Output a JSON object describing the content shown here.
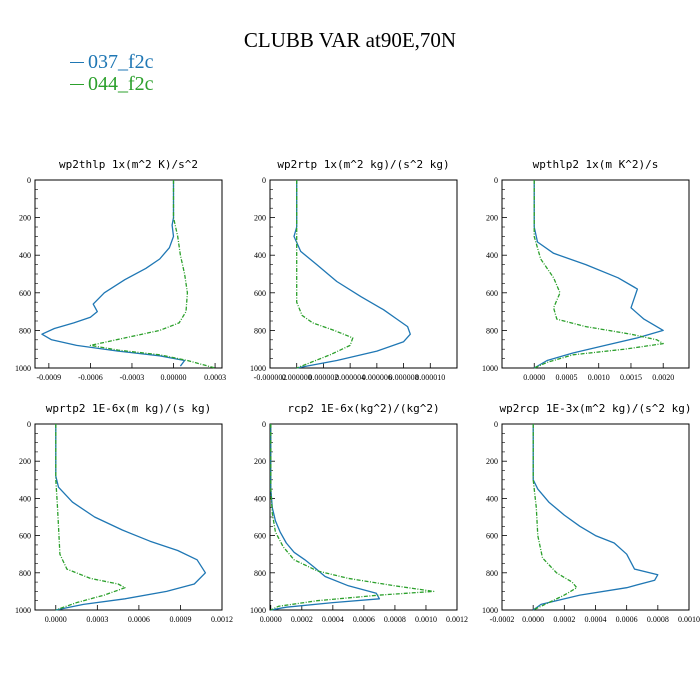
{
  "figure_title": "CLUBB VAR at90E,70N",
  "legend": [
    {
      "label": "037_f2c",
      "color": "#1f77b4"
    },
    {
      "label": "044_f2c",
      "color": "#2ca02c"
    }
  ],
  "chart_data": [
    {
      "type": "line",
      "title": "wp2thlp  1x(m^2 K)/s^2",
      "xlim": [
        -0.001,
        0.00035
      ],
      "ylim": [
        0,
        1000
      ],
      "y_inverted": true,
      "xticks": [
        -0.0009,
        -0.0006,
        -0.0003,
        0.0,
        0.0003
      ],
      "xtick_labels": [
        "-0.0009",
        "-0.0006",
        "-0.0003",
        "0.00000",
        "0.0003"
      ],
      "yticks": [
        0,
        200,
        400,
        600,
        800,
        1000
      ],
      "series": [
        {
          "name": "037_f2c",
          "color": "#1f77b4",
          "dashed": false,
          "x": [
            0.0,
            0.0,
            -1e-05,
            0.0,
            -3e-05,
            -0.0001,
            -0.0002,
            -0.00035,
            -0.0005,
            -0.00058,
            -0.00055,
            -0.0006,
            -0.00072,
            -0.00086,
            -0.00095,
            -0.00088,
            -0.0007,
            -0.0004,
            -0.0001,
            8e-05,
            5e-05
          ],
          "y": [
            0,
            200,
            240,
            300,
            360,
            420,
            470,
            530,
            600,
            660,
            700,
            730,
            760,
            790,
            820,
            850,
            880,
            910,
            935,
            960,
            990
          ]
        },
        {
          "name": "044_f2c",
          "color": "#2ca02c",
          "dashed": true,
          "x": [
            0.0,
            0.0,
            3e-05,
            5e-05,
            8e-05,
            0.0001,
            9e-05,
            4e-05,
            -0.0001,
            -0.00035,
            -0.0006,
            -0.0004,
            -0.0001,
            0.0001,
            0.0003
          ],
          "y": [
            0,
            200,
            300,
            400,
            500,
            600,
            700,
            760,
            800,
            840,
            880,
            905,
            930,
            960,
            1000
          ]
        }
      ]
    },
    {
      "type": "line",
      "title": "wp2rtp  1x(m^2 kg)/(s^2 kg)",
      "xlim": [
        -2e-06,
        1.2e-05
      ],
      "ylim": [
        0,
        1000
      ],
      "y_inverted": true,
      "xticks": [
        -2e-06,
        0.0,
        2e-06,
        4e-06,
        6e-06,
        8e-06,
        1e-05
      ],
      "xtick_labels": [
        "-0.000002",
        "0.000000",
        "0.000002",
        "0.000004",
        "0.000006",
        "0.000008",
        "0.000010"
      ],
      "yticks": [
        0,
        200,
        400,
        600,
        800,
        1000
      ],
      "series": [
        {
          "name": "037_f2c",
          "color": "#1f77b4",
          "dashed": false,
          "x": [
            0.0,
            0.0,
            -2e-07,
            3e-07,
            1.5e-06,
            3e-06,
            4.8e-06,
            6.5e-06,
            7.5e-06,
            8.3e-06,
            8.5e-06,
            8e-06,
            6e-06,
            3e-06,
            0.0
          ],
          "y": [
            0,
            250,
            300,
            380,
            450,
            540,
            620,
            690,
            740,
            780,
            820,
            860,
            910,
            960,
            1000
          ]
        },
        {
          "name": "044_f2c",
          "color": "#2ca02c",
          "dashed": true,
          "x": [
            0.0,
            0.0,
            0.0,
            0.0,
            4e-07,
            1.2e-06,
            2.8e-06,
            4.2e-06,
            4e-06,
            2.5e-06,
            0.0
          ],
          "y": [
            0,
            300,
            500,
            650,
            720,
            760,
            800,
            840,
            880,
            930,
            1000
          ]
        }
      ]
    },
    {
      "type": "line",
      "title": "wpthlp2  1x(m K^2)/s",
      "xlim": [
        -0.0005,
        0.0024
      ],
      "ylim": [
        0,
        1000
      ],
      "y_inverted": true,
      "xticks": [
        0.0,
        0.0005,
        0.001,
        0.0015,
        0.002
      ],
      "xtick_labels": [
        "0.0000",
        "0.0005",
        "0.0010",
        "0.0015",
        "0.0020"
      ],
      "yticks": [
        0,
        200,
        400,
        600,
        800,
        1000
      ],
      "series": [
        {
          "name": "037_f2c",
          "color": "#1f77b4",
          "dashed": false,
          "x": [
            0.0,
            0.0,
            5e-05,
            0.0003,
            0.0008,
            0.0013,
            0.0016,
            0.0015,
            0.0017,
            0.002,
            0.0016,
            0.0011,
            0.0006,
            0.0002,
            0.0
          ],
          "y": [
            0,
            250,
            330,
            390,
            450,
            520,
            580,
            680,
            740,
            800,
            840,
            880,
            920,
            960,
            1000
          ]
        },
        {
          "name": "044_f2c",
          "color": "#2ca02c",
          "dashed": true,
          "x": [
            0.0,
            0.0,
            0.0001,
            0.0003,
            0.0004,
            0.0003,
            0.00035,
            0.0008,
            0.0015,
            0.0019,
            0.002,
            0.0014,
            0.0006,
            0.0002,
            0.0
          ],
          "y": [
            0,
            300,
            420,
            520,
            600,
            680,
            740,
            780,
            820,
            850,
            870,
            900,
            930,
            970,
            1000
          ]
        }
      ]
    },
    {
      "type": "line",
      "title": "wprtp2  1E-6x(m kg)/(s kg)",
      "xlim": [
        -0.00015,
        0.0012
      ],
      "ylim": [
        0,
        1000
      ],
      "y_inverted": true,
      "xticks": [
        0.0,
        0.0003,
        0.0006,
        0.0009,
        0.0012
      ],
      "xtick_labels": [
        "0.0000",
        "0.0003",
        "0.0006",
        "0.0009",
        "0.0012"
      ],
      "yticks": [
        0,
        200,
        400,
        600,
        800,
        1000
      ],
      "series": [
        {
          "name": "037_f2c",
          "color": "#1f77b4",
          "dashed": false,
          "x": [
            0.0,
            0.0,
            2e-05,
            0.00012,
            0.00028,
            0.00048,
            0.00068,
            0.00088,
            0.00102,
            0.00108,
            0.001,
            0.0008,
            0.0005,
            0.0002,
            0.0
          ],
          "y": [
            0,
            280,
            340,
            420,
            500,
            570,
            630,
            680,
            730,
            800,
            860,
            900,
            940,
            970,
            1000
          ]
        },
        {
          "name": "044_f2c",
          "color": "#2ca02c",
          "dashed": true,
          "x": [
            0.0,
            0.0,
            1e-05,
            2e-05,
            3e-05,
            8e-05,
            0.00025,
            0.00045,
            0.0005,
            0.00035,
            0.00015,
            0.0
          ],
          "y": [
            0,
            300,
            420,
            550,
            700,
            780,
            830,
            860,
            880,
            920,
            960,
            1000
          ]
        }
      ]
    },
    {
      "type": "line",
      "title": "rcp2  1E-6x(kg^2)/(kg^2)",
      "xlim": [
        -5e-06,
        0.0012
      ],
      "ylim": [
        0,
        1000
      ],
      "y_inverted": true,
      "xticks": [
        0.0,
        0.0002,
        0.0004,
        0.0006,
        0.0008,
        0.001,
        0.0012
      ],
      "xtick_labels": [
        "0.0000",
        "0.0002",
        "0.0004",
        "0.0006",
        "0.0008",
        "0.0010",
        "0.0012"
      ],
      "yticks": [
        0,
        200,
        400,
        600,
        800,
        1000
      ],
      "series": [
        {
          "name": "037_f2c",
          "color": "#1f77b4",
          "dashed": false,
          "x": [
            0.0,
            0.0,
            1e-05,
            3e-05,
            6e-05,
            0.0001,
            0.00015,
            0.00022,
            0.00028,
            0.00035,
            0.0005,
            0.00068,
            0.0007,
            0.0004,
            0.0001,
            0.0
          ],
          "y": [
            0,
            350,
            450,
            520,
            580,
            640,
            690,
            730,
            770,
            820,
            870,
            910,
            940,
            960,
            985,
            1000
          ]
        },
        {
          "name": "044_f2c",
          "color": "#2ca02c",
          "dashed": true,
          "x": [
            0.0,
            0.0,
            1e-05,
            3e-05,
            8e-05,
            0.00015,
            0.0003,
            0.0005,
            0.0008,
            0.00105,
            0.0007,
            0.0003,
            5e-05,
            0.0
          ],
          "y": [
            0,
            350,
            480,
            580,
            660,
            730,
            790,
            830,
            870,
            900,
            920,
            950,
            980,
            1000
          ]
        }
      ]
    },
    {
      "type": "line",
      "title": "wp2rcp  1E-3x(m^2 kg)/(s^2 kg)",
      "xlim": [
        -0.0002,
        0.001
      ],
      "ylim": [
        0,
        1000
      ],
      "y_inverted": true,
      "xticks": [
        -0.0002,
        0.0,
        0.0002,
        0.0004,
        0.0006,
        0.0008,
        0.001
      ],
      "xtick_labels": [
        "-0.0002",
        "0.0000",
        "0.0002",
        "0.0004",
        "0.0006",
        "0.0008",
        "0.0010"
      ],
      "yticks": [
        0,
        200,
        400,
        600,
        800,
        1000
      ],
      "series": [
        {
          "name": "037_f2c",
          "color": "#1f77b4",
          "dashed": false,
          "x": [
            0.0,
            0.0,
            3e-05,
            0.0001,
            0.0002,
            0.0003,
            0.0004,
            0.00052,
            0.0006,
            0.00065,
            0.0008,
            0.00078,
            0.0006,
            0.0003,
            5e-05,
            0.0
          ],
          "y": [
            0,
            300,
            350,
            420,
            490,
            550,
            600,
            640,
            700,
            780,
            810,
            840,
            880,
            920,
            970,
            1000
          ]
        },
        {
          "name": "044_f2c",
          "color": "#2ca02c",
          "dashed": true,
          "x": [
            0.0,
            0.0,
            2e-05,
            3e-05,
            6e-05,
            0.00015,
            0.00025,
            0.00028,
            0.0002,
            0.0001,
            0.0
          ],
          "y": [
            0,
            300,
            450,
            600,
            720,
            800,
            850,
            880,
            920,
            960,
            1000
          ]
        }
      ]
    }
  ]
}
